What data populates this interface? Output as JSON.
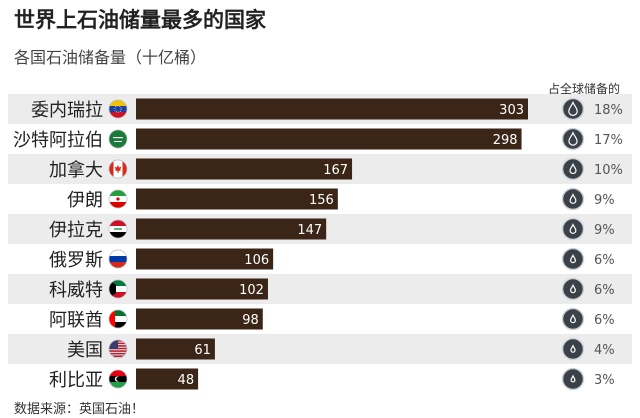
{
  "title": "世界上石油储量最多的国家",
  "subtitle": "各国石油储备量（十亿桶）",
  "share_header": "占全球储备的",
  "source": "数据来源：英国石油！",
  "colors": {
    "bar": "#3b2517",
    "row_band": "#ececec",
    "drop_dark": "#3a4149",
    "ring": "#cfd3d6"
  },
  "chart_data": {
    "type": "bar",
    "orientation": "horizontal",
    "title": "世界上石油储量最多的国家",
    "subtitle": "各国石油储备量（十亿桶）",
    "categories": [
      "委内瑞拉",
      "沙特阿拉伯",
      "加拿大",
      "伊朗",
      "伊拉克",
      "俄罗斯",
      "科威特",
      "阿联酋",
      "美国",
      "利比亚"
    ],
    "values": [
      303,
      298,
      167,
      156,
      147,
      106,
      102,
      98,
      61,
      48
    ],
    "share_labels": [
      "18%",
      "17%",
      "10%",
      "9%",
      "9%",
      "6%",
      "6%",
      "6%",
      "4%",
      "3%"
    ],
    "flags": [
      "venezuela-flag-icon",
      "saudi-arabia-flag-icon",
      "canada-flag-icon",
      "iran-flag-icon",
      "iraq-flag-icon",
      "russia-flag-icon",
      "kuwait-flag-icon",
      "uae-flag-icon",
      "usa-flag-icon",
      "libya-flag-icon"
    ],
    "share_icon": "oil-drop-icon",
    "xlim": [
      0,
      303
    ],
    "grid": false,
    "data_labels": "inside-end"
  }
}
